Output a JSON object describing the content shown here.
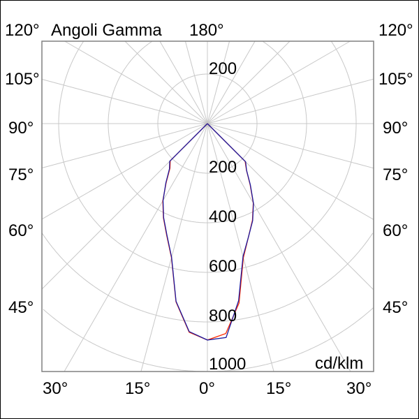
{
  "chart_data": {
    "type": "polar-line",
    "title": "Angoli Gamma",
    "unit_label": "cd/klm",
    "radial_ticks": [
      200,
      400,
      600,
      800,
      1000
    ],
    "radial_tick_upper": "200",
    "radial_range": [
      0,
      1000
    ],
    "grid": true,
    "angle_labels_left": [
      "120°",
      "105°",
      "90°",
      "75°",
      "60°",
      "45°"
    ],
    "angle_labels_right": [
      "120°",
      "105°",
      "90°",
      "75°",
      "60°",
      "45°"
    ],
    "angle_labels_bottom": [
      "30°",
      "15°",
      "0°",
      "15°",
      "30°"
    ],
    "angle_label_top": "180°",
    "gamma": [
      0,
      5,
      10,
      15,
      20,
      25,
      30,
      35,
      40,
      45,
      90,
      180
    ],
    "series": [
      {
        "color": "#ff2a00",
        "left": [
          873,
          845,
          730,
          560,
          480,
          420,
          360,
          290,
          235,
          212,
          0,
          0
        ],
        "right": [
          873,
          850,
          735,
          560,
          485,
          430,
          370,
          300,
          245,
          215,
          0,
          0
        ]
      },
      {
        "color": "#1a1aa0",
        "left": [
          873,
          842,
          728,
          558,
          478,
          418,
          358,
          292,
          238,
          215,
          0,
          0
        ],
        "right": [
          873,
          866,
          725,
          555,
          485,
          432,
          372,
          302,
          246,
          218,
          0,
          0
        ]
      }
    ]
  }
}
